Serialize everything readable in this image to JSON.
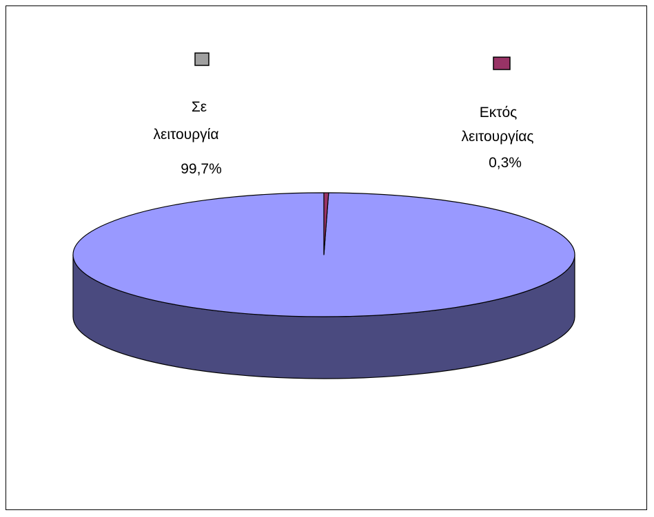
{
  "chart_data": {
    "type": "pie",
    "title": "",
    "style": "3d",
    "slices": [
      {
        "label_lines": [
          "Σε",
          "λειτουργία"
        ],
        "value": 99.7,
        "value_label": "99,7%",
        "legend_color": "#a0a0a0",
        "top_color": "#9999ff",
        "side_color": "#4a4a7f"
      },
      {
        "label_lines": [
          "Εκτός",
          "λειτουργίας"
        ],
        "value": 0.3,
        "value_label": "0,3%",
        "legend_color": "#993366",
        "top_color": "#993366",
        "side_color": "#5c1f3d"
      }
    ],
    "start_angle_deg": 90,
    "direction": "counterclockwise",
    "legend_position": "top"
  }
}
